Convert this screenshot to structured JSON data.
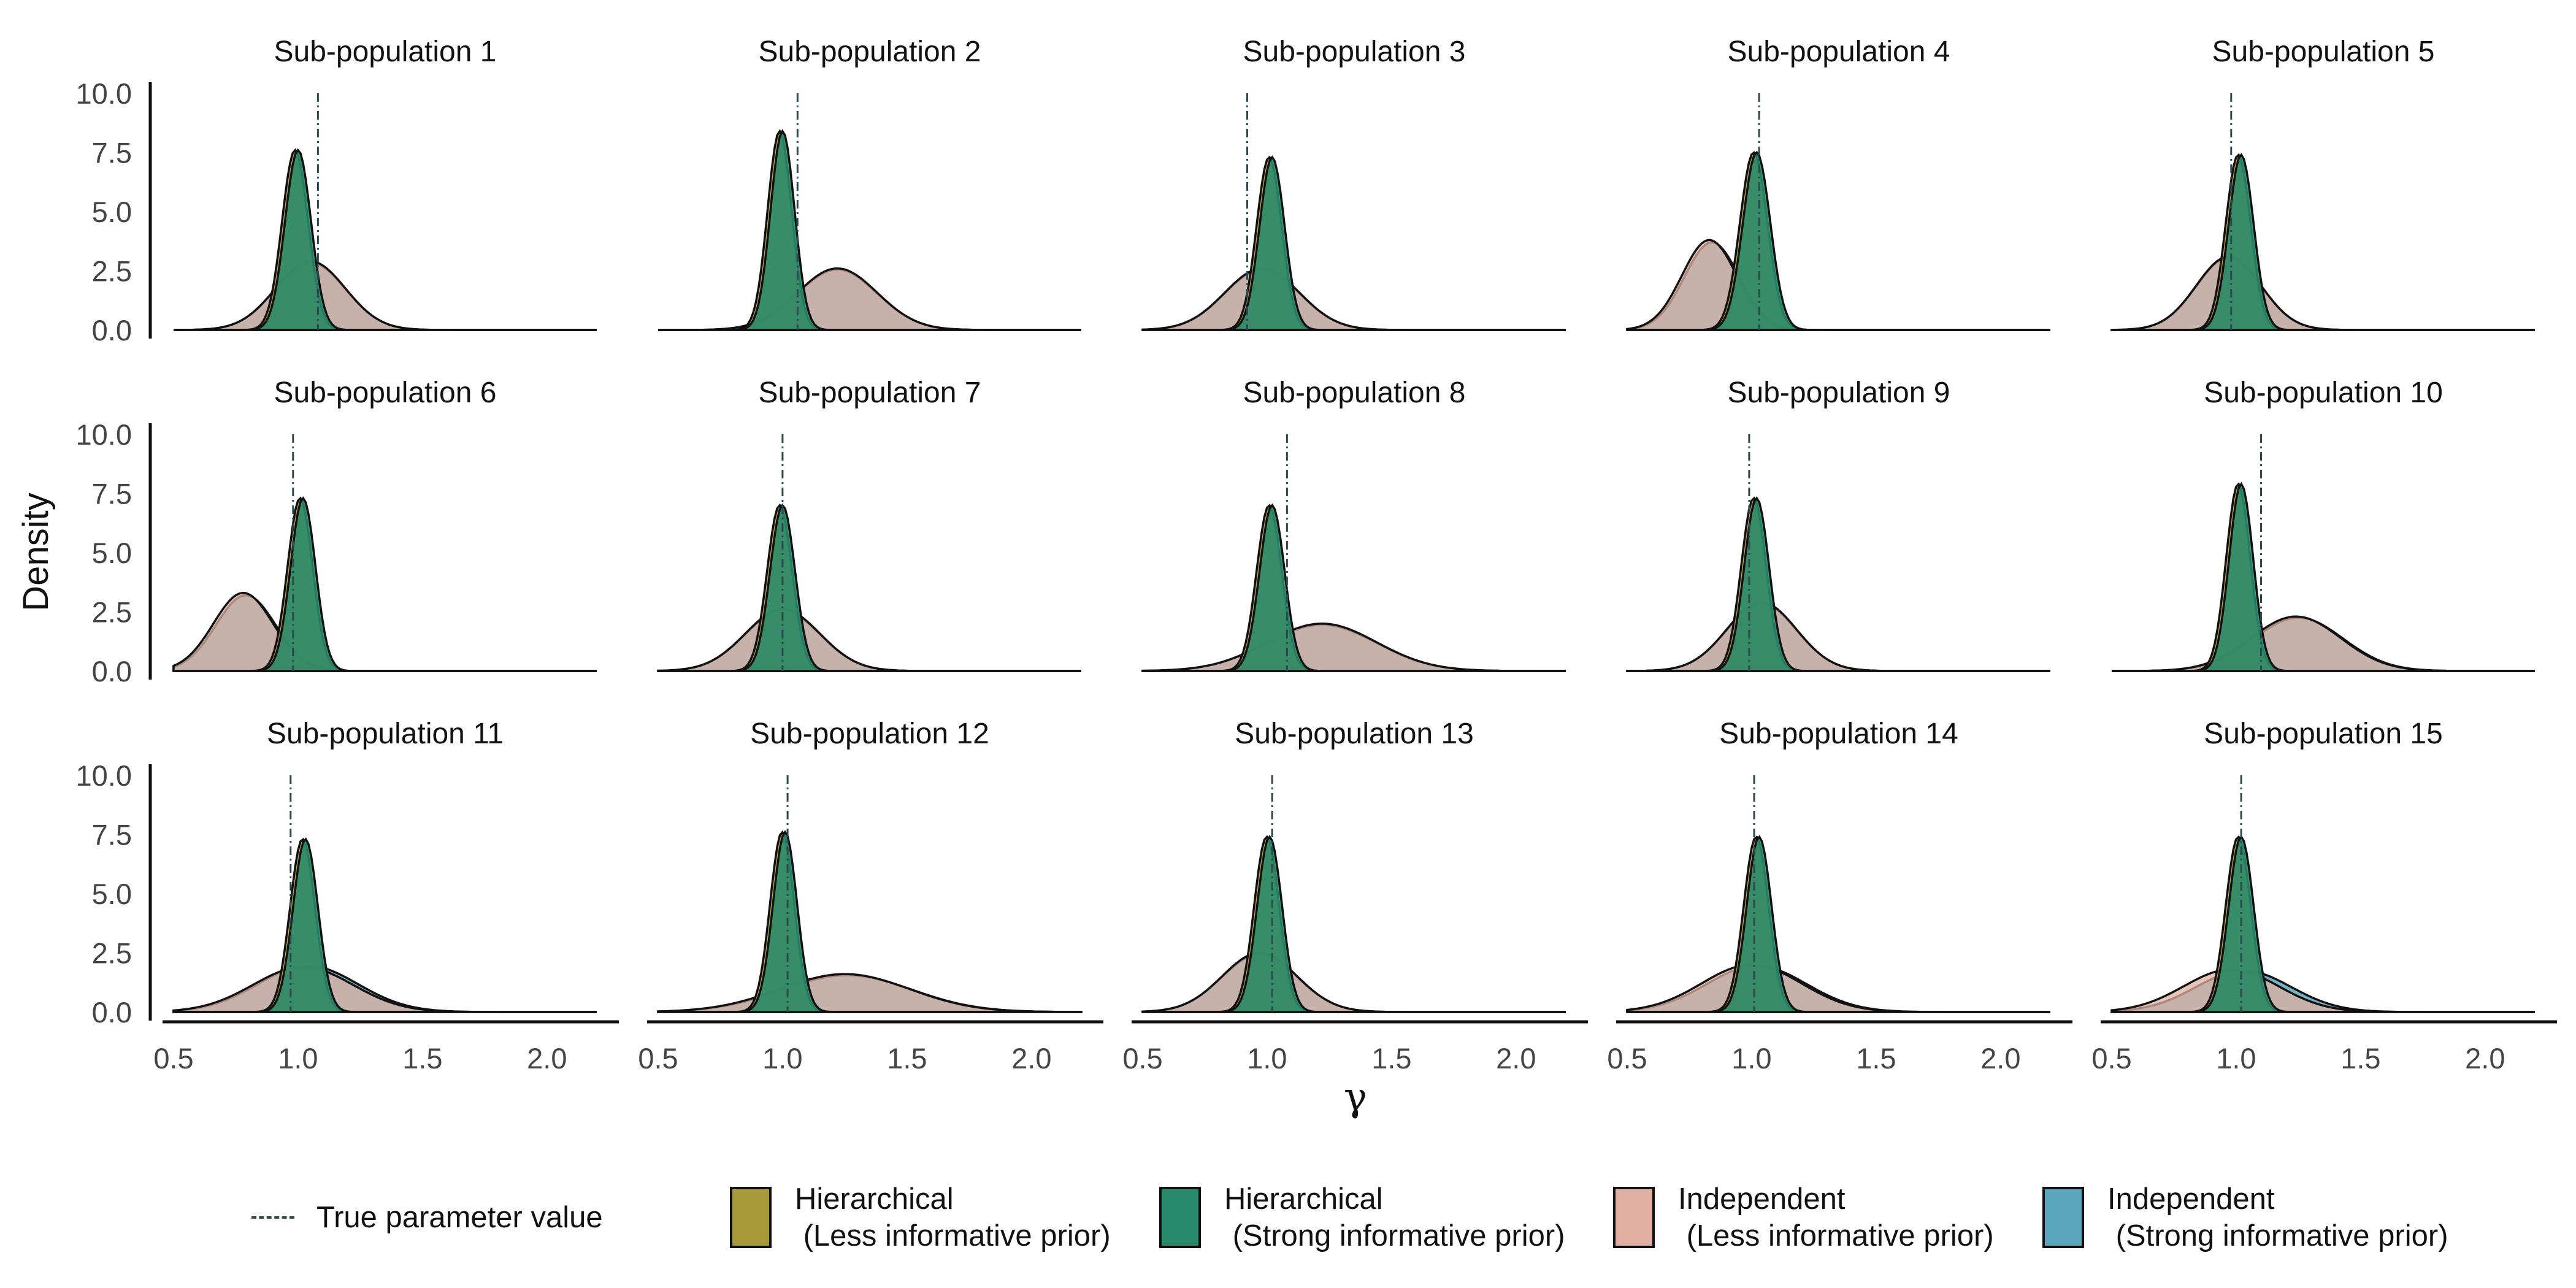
{
  "chart_data": {
    "type": "area",
    "layout": "facet-grid",
    "rows": 3,
    "cols": 5,
    "xlabel": "γ",
    "ylabel": "Density",
    "xlim": [
      0.5,
      2.2
    ],
    "ylim": [
      0,
      10
    ],
    "xticks": [
      "0.5",
      "1.0",
      "1.5",
      "2.0"
    ],
    "yticks": [
      "0.0",
      "2.5",
      "5.0",
      "7.5",
      "10.0"
    ],
    "legend_position": "bottom",
    "true_value_label": "True parameter value",
    "series": [
      {
        "key": "hl",
        "name": "Hierarchical\n (Less informative prior)",
        "color": "#a89a3a"
      },
      {
        "key": "hs",
        "name": "Hierarchical\n (Strong informative prior)",
        "color": "#2a8a6c"
      },
      {
        "key": "il",
        "name": "Independent\n (Less informative prior)",
        "color": "#e2b0a2"
      },
      {
        "key": "is",
        "name": "Independent\n (Strong informative prior)",
        "color": "#5aa6bd"
      }
    ],
    "panels": [
      {
        "title": "Sub-population  1",
        "true_value": 1.08,
        "hier": {
          "mean": 1.0,
          "sd": 0.052,
          "peak": 7.6
        },
        "ind_less": {
          "mean": 1.05,
          "sd": 0.14,
          "peak": 2.9
        },
        "ind_strong": {
          "mean": 1.05,
          "sd": 0.14,
          "peak": 2.85
        }
      },
      {
        "title": "Sub-population  2",
        "true_value": 1.06,
        "hier": {
          "mean": 1.0,
          "sd": 0.048,
          "peak": 8.4
        },
        "ind_less": {
          "mean": 1.22,
          "sd": 0.16,
          "peak": 2.6
        },
        "ind_strong": {
          "mean": 1.22,
          "sd": 0.16,
          "peak": 2.55
        }
      },
      {
        "title": "Sub-population  3",
        "true_value": 0.92,
        "hier": {
          "mean": 1.02,
          "sd": 0.05,
          "peak": 7.3
        },
        "ind_less": {
          "mean": 0.98,
          "sd": 0.15,
          "peak": 2.6
        },
        "ind_strong": {
          "mean": 0.98,
          "sd": 0.15,
          "peak": 2.55
        }
      },
      {
        "title": "Sub-population  4",
        "true_value": 1.03,
        "hier": {
          "mean": 1.02,
          "sd": 0.055,
          "peak": 7.5
        },
        "ind_less": {
          "mean": 0.83,
          "sd": 0.11,
          "peak": 3.8
        },
        "ind_strong": {
          "mean": 0.84,
          "sd": 0.11,
          "peak": 3.7
        }
      },
      {
        "title": "Sub-population  5",
        "true_value": 0.98,
        "hier": {
          "mean": 1.02,
          "sd": 0.05,
          "peak": 7.4
        },
        "ind_less": {
          "mean": 0.97,
          "sd": 0.13,
          "peak": 3.1
        },
        "ind_strong": {
          "mean": 0.97,
          "sd": 0.13,
          "peak": 3.05
        }
      },
      {
        "title": "Sub-population  6",
        "true_value": 0.98,
        "hier": {
          "mean": 1.02,
          "sd": 0.05,
          "peak": 7.3
        },
        "ind_less": {
          "mean": 0.78,
          "sd": 0.12,
          "peak": 3.3
        },
        "ind_strong": {
          "mean": 0.79,
          "sd": 0.12,
          "peak": 3.2
        }
      },
      {
        "title": "Sub-population  7",
        "true_value": 1.0,
        "hier": {
          "mean": 1.0,
          "sd": 0.05,
          "peak": 7.0
        },
        "ind_less": {
          "mean": 1.0,
          "sd": 0.15,
          "peak": 2.6
        },
        "ind_strong": {
          "mean": 1.0,
          "sd": 0.15,
          "peak": 2.55
        }
      },
      {
        "title": "Sub-population  8",
        "true_value": 1.08,
        "hier": {
          "mean": 1.02,
          "sd": 0.05,
          "peak": 7.0
        },
        "ind_less": {
          "mean": 1.22,
          "sd": 0.22,
          "peak": 2.0
        },
        "ind_strong": {
          "mean": 1.22,
          "sd": 0.22,
          "peak": 1.95
        }
      },
      {
        "title": "Sub-population  9",
        "true_value": 0.99,
        "hier": {
          "mean": 1.02,
          "sd": 0.05,
          "peak": 7.3
        },
        "ind_less": {
          "mean": 1.04,
          "sd": 0.14,
          "peak": 2.9
        },
        "ind_strong": {
          "mean": 1.04,
          "sd": 0.14,
          "peak": 2.85
        }
      },
      {
        "title": "Sub-population  10",
        "true_value": 1.1,
        "hier": {
          "mean": 1.02,
          "sd": 0.048,
          "peak": 7.9
        },
        "ind_less": {
          "mean": 1.24,
          "sd": 0.18,
          "peak": 2.3
        },
        "ind_strong": {
          "mean": 1.25,
          "sd": 0.18,
          "peak": 2.25
        }
      },
      {
        "title": "Sub-population  11",
        "true_value": 0.97,
        "hier": {
          "mean": 1.03,
          "sd": 0.05,
          "peak": 7.3
        },
        "ind_less": {
          "mean": 1.02,
          "sd": 0.2,
          "peak": 1.9
        },
        "ind_strong": {
          "mean": 1.04,
          "sd": 0.2,
          "peak": 1.95
        }
      },
      {
        "title": "Sub-population  12",
        "true_value": 1.02,
        "hier": {
          "mean": 1.01,
          "sd": 0.048,
          "peak": 7.6
        },
        "ind_less": {
          "mean": 1.25,
          "sd": 0.26,
          "peak": 1.6
        },
        "ind_strong": {
          "mean": 1.26,
          "sd": 0.26,
          "peak": 1.55
        }
      },
      {
        "title": "Sub-population  13",
        "true_value": 1.02,
        "hier": {
          "mean": 1.01,
          "sd": 0.05,
          "peak": 7.4
        },
        "ind_less": {
          "mean": 0.97,
          "sd": 0.15,
          "peak": 2.5
        },
        "ind_strong": {
          "mean": 0.97,
          "sd": 0.15,
          "peak": 2.45
        }
      },
      {
        "title": "Sub-population  14",
        "true_value": 1.01,
        "hier": {
          "mean": 1.03,
          "sd": 0.05,
          "peak": 7.4
        },
        "ind_less": {
          "mean": 1.0,
          "sd": 0.2,
          "peak": 2.0
        },
        "ind_strong": {
          "mean": 1.02,
          "sd": 0.2,
          "peak": 1.95
        }
      },
      {
        "title": "Sub-population  15",
        "true_value": 1.02,
        "hier": {
          "mean": 1.02,
          "sd": 0.05,
          "peak": 7.4
        },
        "ind_less": {
          "mean": 0.98,
          "sd": 0.19,
          "peak": 1.8
        },
        "ind_strong": {
          "mean": 1.03,
          "sd": 0.19,
          "peak": 1.75
        }
      }
    ]
  }
}
